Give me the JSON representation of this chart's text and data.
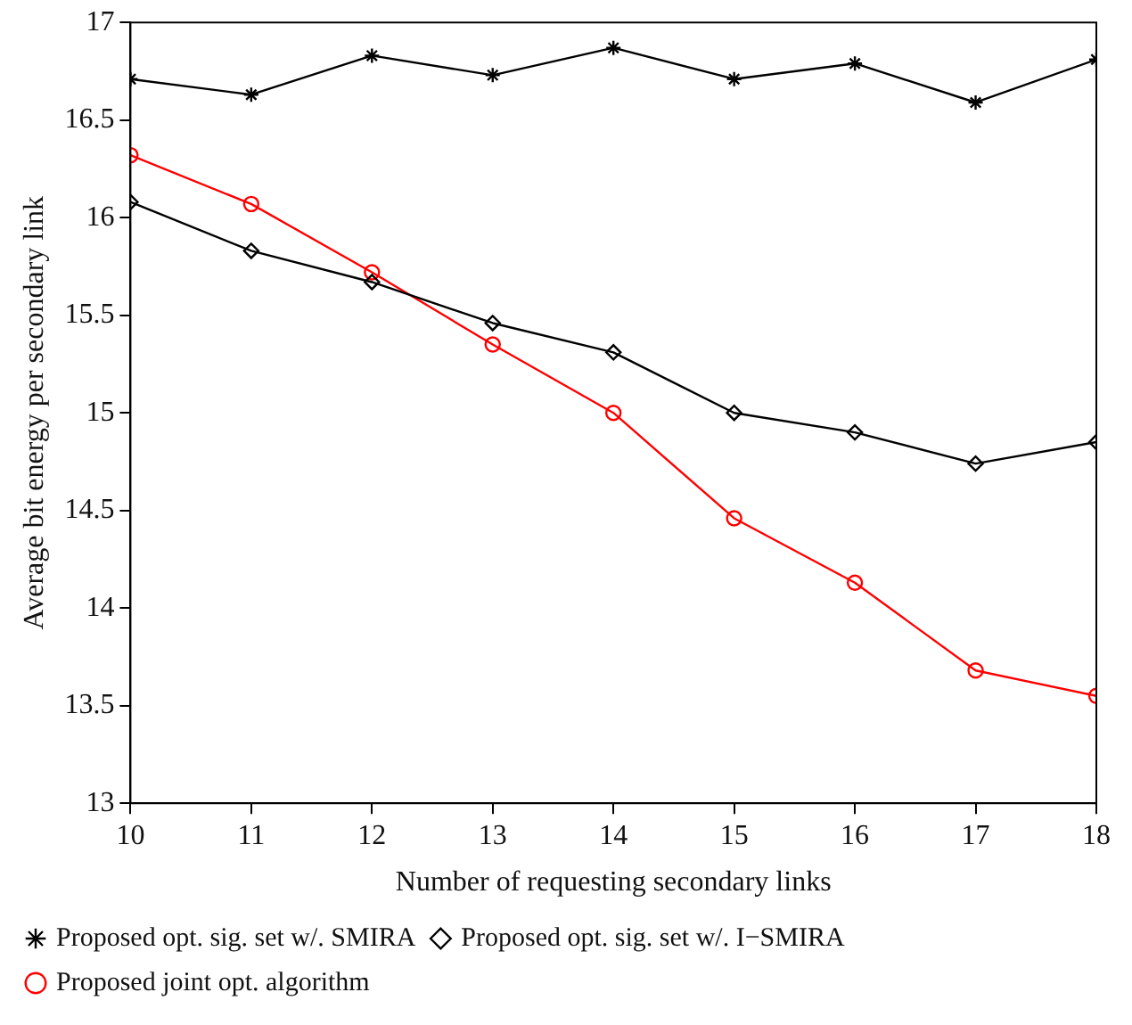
{
  "chart_data": {
    "type": "line",
    "xlabel": "Number of requesting secondary links",
    "ylabel": "Average bit energy per secondary link",
    "x": [
      10,
      11,
      12,
      13,
      14,
      15,
      16,
      17,
      18
    ],
    "series": [
      {
        "name": "Proposed opt. sig. set w/. SMIRA",
        "color": "#000000",
        "marker": "cross",
        "values": [
          16.71,
          16.63,
          16.83,
          16.73,
          16.87,
          16.71,
          16.79,
          16.59,
          16.81
        ]
      },
      {
        "name": "Proposed opt. sig. set w/. I−SMIRA",
        "color": "#000000",
        "marker": "diamond",
        "values": [
          16.08,
          15.83,
          15.67,
          15.46,
          15.31,
          15.0,
          14.9,
          14.74,
          14.85
        ]
      },
      {
        "name": "Proposed joint opt. algorithm",
        "color": "#ff0000",
        "marker": "circle",
        "values": [
          16.32,
          16.07,
          15.72,
          15.35,
          15.0,
          14.46,
          14.13,
          13.68,
          13.55
        ]
      }
    ],
    "xlim": [
      10,
      18
    ],
    "xticks": [
      10,
      11,
      12,
      13,
      14,
      15,
      16,
      17,
      18
    ],
    "ylim": [
      13,
      17
    ],
    "yticks": [
      13,
      13.5,
      14,
      14.5,
      15,
      15.5,
      16,
      16.5,
      17
    ],
    "grid": false,
    "legend": "bottom",
    "line_style": "solid"
  }
}
